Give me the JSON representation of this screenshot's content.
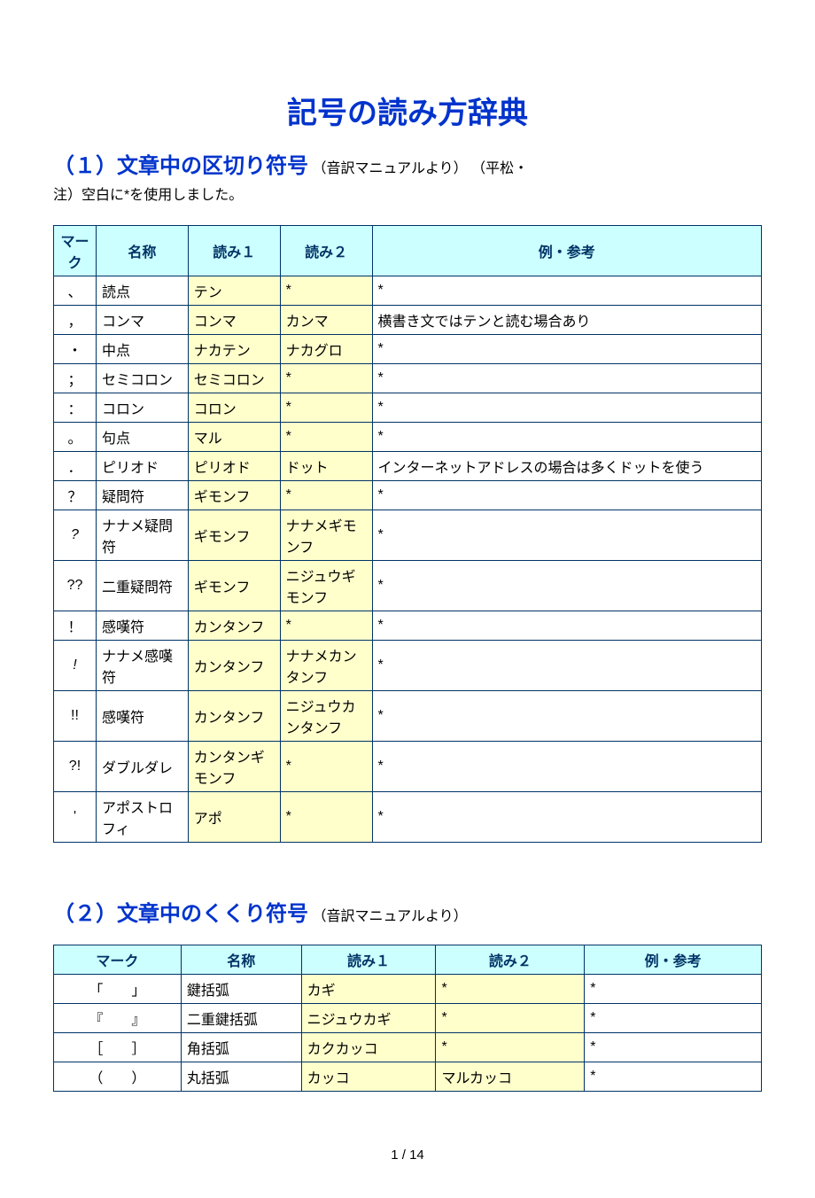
{
  "title": "記号の読み方辞典",
  "section1": {
    "heading": "（１）文章中の区切り符号",
    "sub": "（音訳マニュアルより）",
    "note_prefix": "（平松・",
    "note_line": "注）空白に*を使用しました。",
    "headers": [
      "マーク",
      "名称",
      "読み１",
      "読み２",
      "例・参考"
    ],
    "rows": [
      {
        "mark": "、",
        "name": "読点",
        "r1": "テン",
        "r2": "*",
        "ex": "*"
      },
      {
        "mark": "，",
        "name": "コンマ",
        "r1": "コンマ",
        "r2": "カンマ",
        "ex": "横書き文ではテンと読む場合あり"
      },
      {
        "mark": "・",
        "name": "中点",
        "r1": "ナカテン",
        "r2": "ナカグロ",
        "ex": "*"
      },
      {
        "mark": "；",
        "name": "セミコロン",
        "r1": "セミコロン",
        "r2": "*",
        "ex": "*"
      },
      {
        "mark": "：",
        "name": "コロン",
        "r1": "コロン",
        "r2": "*",
        "ex": "*"
      },
      {
        "mark": "。",
        "name": "句点",
        "r1": "マル",
        "r2": "*",
        "ex": "*"
      },
      {
        "mark": "．",
        "name": "ピリオド",
        "r1": "ピリオド",
        "r2": "ドット",
        "ex": "インターネットアドレスの場合は多くドットを使う"
      },
      {
        "mark": "？",
        "name": "疑問符",
        "r1": "ギモンフ",
        "r2": "*",
        "ex": "*"
      },
      {
        "mark": "?",
        "italic": true,
        "name": "ナナメ疑問符",
        "r1": "ギモンフ",
        "r2": "ナナメギモンフ",
        "ex": "*"
      },
      {
        "mark": "??",
        "name": "二重疑問符",
        "r1": "ギモンフ",
        "r2": "ニジュウギモンフ",
        "ex": "*"
      },
      {
        "mark": "！",
        "name": "感嘆符",
        "r1": "カンタンフ",
        "r2": "*",
        "ex": "*"
      },
      {
        "mark": "!",
        "italic": true,
        "name": "ナナメ感嘆符",
        "r1": "カンタンフ",
        "r2": "ナナメカンタンフ",
        "ex": "*"
      },
      {
        "mark": "!!",
        "name": "感嘆符",
        "r1": "カンタンフ",
        "r2": "ニジュウカンタンフ",
        "ex": "*"
      },
      {
        "mark": "?!",
        "name": "ダブルダレ",
        "r1": "カンタンギモンフ",
        "r2": "*",
        "ex": "*"
      },
      {
        "mark": "'",
        "name": "アポストロフィ",
        "r1": "アポ",
        "r2": "*",
        "ex": "*"
      }
    ]
  },
  "section2": {
    "heading": "（２）文章中のくくり符号",
    "sub": "（音訳マニュアルより）",
    "headers": [
      "マーク",
      "名称",
      "読み１",
      "読み２",
      "例・参考"
    ],
    "rows": [
      {
        "mark": "「　　」",
        "name": "鍵括弧",
        "r1": "カギ",
        "r2": "*",
        "ex": "*"
      },
      {
        "mark": "『　　』",
        "name": "二重鍵括弧",
        "r1": "ニジュウカギ",
        "r2": "*",
        "ex": "*"
      },
      {
        "mark": "［　　］",
        "name": "角括弧",
        "r1": "カクカッコ",
        "r2": "*",
        "ex": "*"
      },
      {
        "mark": "（　　）",
        "name": "丸括弧",
        "r1": "カッコ",
        "r2": "マルカッコ",
        "ex": "*"
      }
    ]
  },
  "page_number": "1 / 14",
  "colors": {
    "heading_color": "#0033cc",
    "border_color": "#003366",
    "header_bg": "#ccffff",
    "highlight_bg": "#ffffcc",
    "text_color": "#000000",
    "background": "#ffffff"
  },
  "typography": {
    "title_fontsize": 34,
    "section_fontsize": 24,
    "body_fontsize": 16,
    "page_num_fontsize": 15
  }
}
